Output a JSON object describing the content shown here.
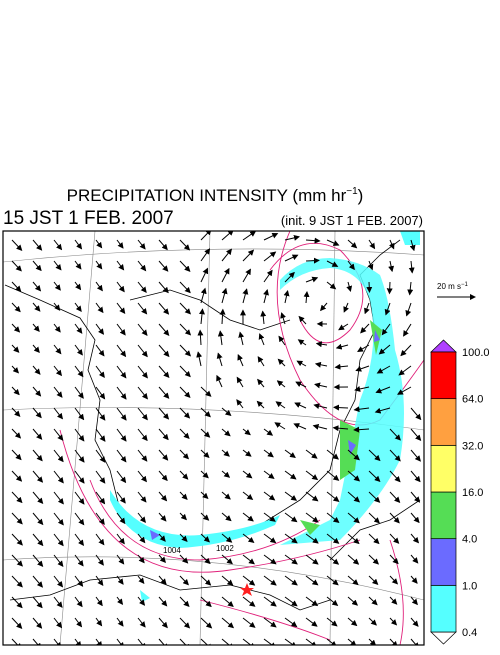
{
  "header": {
    "title": "PRECIPITATION INTENSITY (mm hr",
    "title_exponent": "−1",
    "title_close": ")",
    "valid_time": "15 JST 1 FEB. 2007",
    "init_time": "(init. 9 JST 1 FEB. 2007)"
  },
  "wind_scale": {
    "label": "20 m s",
    "exponent": "−1"
  },
  "isobar_labels": [
    "1004",
    "1002"
  ],
  "colorbar": {
    "levels": [
      {
        "value": 0.4,
        "label": "0.4"
      },
      {
        "value": 1,
        "label": "1.0"
      },
      {
        "value": 4,
        "label": "4.0"
      },
      {
        "value": 16,
        "label": "16.0"
      },
      {
        "value": 32,
        "label": "32.0"
      },
      {
        "value": 64,
        "label": "64.0"
      },
      {
        "value": 100,
        "label": "100.0"
      }
    ],
    "colors": [
      "#55ffff",
      "#6b6bff",
      "#55dd55",
      "#ffff66",
      "#ffa040",
      "#ff0000"
    ],
    "under_color": "#ffffff",
    "over_color": "#b040ff"
  }
}
